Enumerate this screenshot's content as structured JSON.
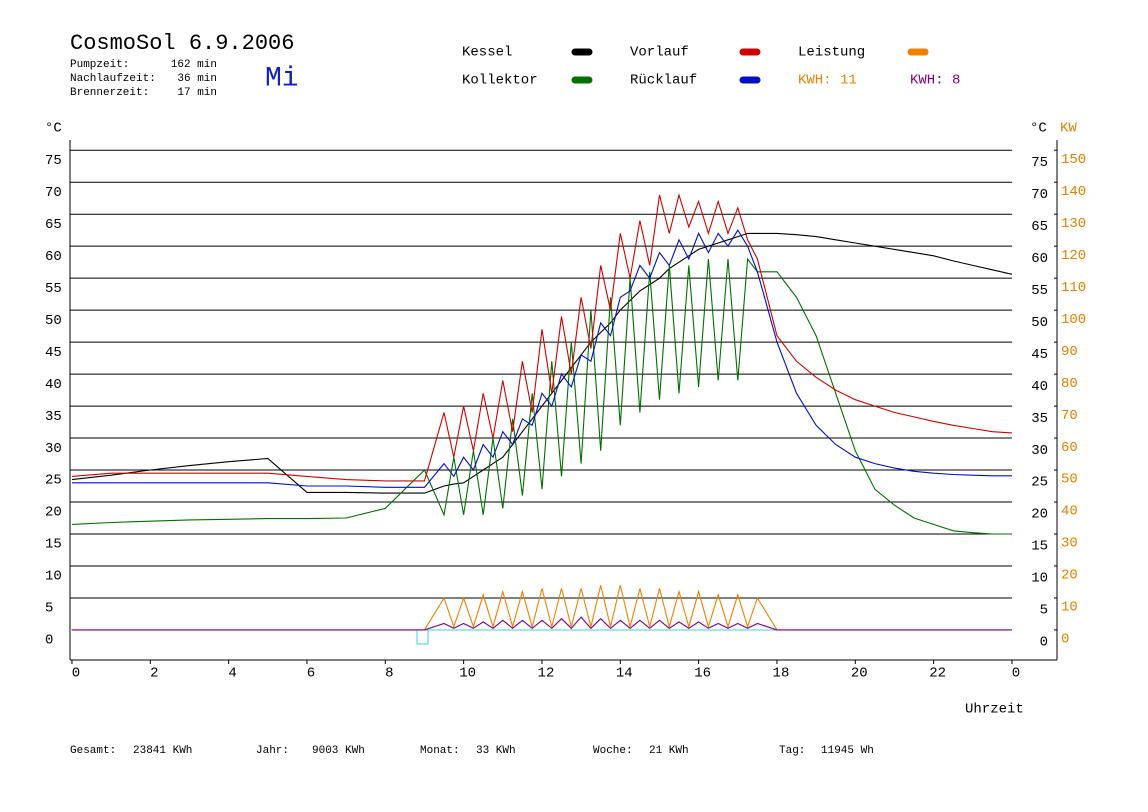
{
  "header": {
    "title": "CosmoSol 6.9.2006",
    "weekday": "Mi",
    "stats": [
      {
        "label": "Pumpzeit:",
        "value": "162 min"
      },
      {
        "label": "Nachlaufzeit:",
        "value": "36 min"
      },
      {
        "label": "Brennerzeit:",
        "value": "17 min"
      }
    ]
  },
  "footer": [
    {
      "label": "Gesamt:",
      "value": "23841 KWh"
    },
    {
      "label": "Jahr:",
      "value": "9003 KWh"
    },
    {
      "label": "Monat:",
      "value": "33 KWh"
    },
    {
      "label": "Woche:",
      "value": "21 KWh"
    },
    {
      "label": "Tag:",
      "value": "11945 Wh"
    }
  ],
  "chart_data": {
    "type": "line",
    "y_unit": "°C",
    "y2_unit": "KW",
    "x_label": "Uhrzeit",
    "xlim": [
      -0.05,
      25.15
    ],
    "xticks": [
      0,
      2,
      4,
      6,
      8,
      10,
      12,
      14,
      16,
      18,
      20,
      22,
      {
        "value": 24,
        "label": "0"
      }
    ],
    "ylim": [
      -4.7,
      76.6
    ],
    "yticks": [
      0,
      5,
      10,
      15,
      20,
      25,
      30,
      35,
      40,
      45,
      50,
      55,
      60,
      65,
      70,
      75
    ],
    "y2lim": [
      -9.4,
      153.2
    ],
    "y2ticks": [
      0,
      10,
      20,
      30,
      40,
      50,
      60,
      70,
      80,
      90,
      100,
      110,
      120,
      130,
      140,
      150
    ],
    "grid": true,
    "x": [
      0,
      1,
      2,
      3,
      4,
      5,
      6,
      7,
      8,
      9,
      9.5,
      9.75,
      10,
      10.25,
      10.5,
      10.75,
      11,
      11.25,
      11.5,
      11.75,
      12,
      12.25,
      12.5,
      12.75,
      13,
      13.25,
      13.5,
      13.75,
      14,
      14.25,
      14.5,
      14.75,
      15,
      15.25,
      15.5,
      15.75,
      16,
      16.25,
      16.5,
      16.75,
      17,
      17.25,
      17.5,
      18,
      18.5,
      19,
      19.5,
      20,
      20.5,
      21,
      21.5,
      22,
      22.5,
      23,
      23.5,
      24
    ],
    "series": [
      {
        "name": "Kessel",
        "color": "#000000",
        "values": [
          23.5,
          24.2,
          25,
          25.7,
          26.3,
          26.8,
          21.5,
          21.5,
          21.4,
          21.4,
          22.5,
          22.8,
          23,
          24,
          25,
          26,
          27,
          29,
          31,
          33,
          35,
          37,
          39,
          41,
          43,
          45,
          46.5,
          48,
          50,
          51.5,
          53,
          54,
          55,
          56.5,
          57.5,
          58.5,
          59.5,
          60,
          60.5,
          61,
          61.5,
          62,
          62,
          62,
          61.8,
          61.5,
          61,
          60.5,
          60,
          59.5,
          59,
          58.5,
          57.7,
          57,
          56.3,
          55.6
        ]
      },
      {
        "name": "Kollektor",
        "color": "#007000",
        "values": [
          16.5,
          16.8,
          17,
          17.2,
          17.3,
          17.4,
          17.4,
          17.5,
          19,
          25,
          18,
          27,
          18,
          28,
          18,
          30,
          19,
          33,
          21,
          37,
          22,
          42,
          24,
          45,
          26,
          50,
          28,
          52,
          32,
          55,
          34,
          56,
          36,
          57,
          37,
          57,
          38,
          58,
          39,
          58,
          39,
          58,
          56,
          56,
          52,
          46,
          37,
          28,
          22,
          19.5,
          17.5,
          16.5,
          15.5,
          15.2,
          15,
          15
        ]
      },
      {
        "name": "Vorlauf",
        "color": "#d00000",
        "values": [
          24,
          24.5,
          24.5,
          24.5,
          24.5,
          24.5,
          24,
          23.5,
          23.3,
          23.3,
          34,
          27,
          35,
          28,
          37,
          30,
          39,
          31,
          42,
          34,
          47,
          37,
          49,
          40,
          52,
          44,
          57,
          50,
          62,
          55,
          64,
          57,
          68,
          62,
          68,
          63,
          67,
          62,
          67,
          62,
          66,
          61,
          58,
          46,
          42,
          39.5,
          37.5,
          36,
          35,
          34,
          33.3,
          32.6,
          32,
          31.5,
          31,
          30.8
        ]
      },
      {
        "name": "Rücklauf",
        "color": "#0010c0",
        "values": [
          23,
          23,
          23,
          23,
          23,
          23,
          22.5,
          22.5,
          22.3,
          22.3,
          26,
          24,
          27,
          25,
          29,
          27,
          31,
          29,
          33,
          32,
          37,
          35,
          40,
          38,
          43,
          42,
          48,
          46,
          52,
          53,
          57,
          55,
          59,
          57,
          61,
          58,
          62,
          59,
          62,
          60,
          62.5,
          60,
          56,
          45,
          37,
          32,
          29,
          27,
          26,
          25.3,
          24.8,
          24.5,
          24.3,
          24.2,
          24.1,
          24.1
        ]
      },
      {
        "name": "Leistung",
        "kwh": "KWH: 11",
        "color": "#f08000",
        "axis": "y2",
        "values": [
          0,
          0,
          0,
          0,
          0,
          0,
          0,
          0,
          0,
          0,
          10,
          1,
          10,
          1,
          11,
          1,
          12,
          1,
          12,
          1,
          13,
          1,
          13,
          1,
          13,
          1,
          14,
          1,
          14,
          1,
          13,
          1,
          13,
          1,
          12,
          1,
          12,
          1,
          11,
          1,
          11,
          1,
          10,
          0,
          0,
          0,
          0,
          0,
          0,
          0,
          0,
          0,
          0,
          0,
          0,
          0
        ]
      },
      {
        "kwh": "KWH: 8",
        "color": "#800080",
        "axis": "y2",
        "values": [
          0,
          0,
          0,
          0,
          0,
          0,
          0,
          0,
          0,
          0,
          2,
          0.5,
          2,
          0.5,
          2.5,
          0.5,
          3,
          0.5,
          3,
          0.5,
          3,
          0.5,
          3.5,
          0.5,
          4,
          0.5,
          3.5,
          0.5,
          3,
          0.5,
          3,
          0.5,
          3,
          0.5,
          2.5,
          0.5,
          2.5,
          0.5,
          2,
          0.5,
          2,
          0.5,
          2,
          0,
          0,
          0,
          0,
          0,
          0,
          0,
          0,
          0,
          0,
          0,
          0,
          0
        ]
      }
    ]
  }
}
